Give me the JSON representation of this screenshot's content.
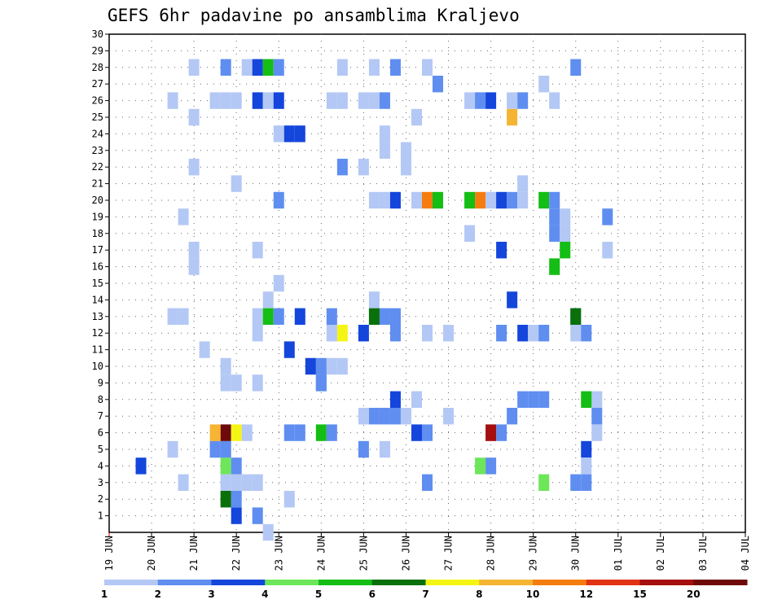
{
  "chart_data": {
    "type": "heatmap",
    "title": "GEFS 6hr padavine po ansamblima Kraljevo",
    "x_tick_labels": [
      "19 JUN",
      "20 JUN",
      "21 JUN",
      "22 JUN",
      "23 JUN",
      "24 JUN",
      "25 JUN",
      "26 JUN",
      "27 JUN",
      "28 JUN",
      "29 JUN",
      "30 JUN",
      "01 JUL",
      "02 JUL",
      "03 JUL",
      "04 JUL"
    ],
    "y_tick_labels": [
      "1",
      "2",
      "3",
      "4",
      "5",
      "6",
      "7",
      "8",
      "9",
      "10",
      "11",
      "12",
      "13",
      "14",
      "15",
      "16",
      "17",
      "18",
      "19",
      "20",
      "21",
      "22",
      "23",
      "24",
      "25",
      "26",
      "27",
      "28",
      "29",
      "30"
    ],
    "x_steps_per_day": 4,
    "legend_labels": [
      "1",
      "2",
      "3",
      "4",
      "5",
      "6",
      "7",
      "8",
      "10",
      "12",
      "15",
      "20"
    ],
    "colors": [
      "#b4c8f5",
      "#5f8ef0",
      "#1446dc",
      "#6ee65a",
      "#14be14",
      "#0a700a",
      "#f5f514",
      "#f5b432",
      "#f57d0f",
      "#e13214",
      "#a50f0f",
      "#6e0a0a"
    ],
    "cells": [
      [
        0,
        15,
        0
      ],
      [
        1,
        14,
        1
      ],
      [
        2,
        17,
        0
      ],
      [
        3,
        30,
        1
      ],
      [
        4,
        3,
        2
      ],
      [
        5,
        10,
        0
      ],
      [
        1,
        12,
        2
      ],
      [
        5,
        11,
        0
      ],
      [
        5,
        6,
        0
      ],
      [
        5,
        26,
        0
      ],
      [
        5,
        24,
        1
      ],
      [
        9,
        12,
        0
      ],
      [
        10,
        22,
        0
      ],
      [
        5,
        45,
        2
      ],
      [
        3,
        7,
        0
      ],
      [
        3,
        11,
        0
      ],
      [
        6,
        37,
        1
      ],
      [
        6,
        36,
        0
      ],
      [
        7,
        38,
        1
      ],
      [
        8,
        46,
        0
      ],
      [
        7,
        46,
        1
      ],
      [
        6,
        46,
        0
      ],
      [
        9,
        14,
        0
      ],
      [
        9,
        20,
        1
      ],
      [
        10,
        21,
        0
      ],
      [
        9,
        20,
        1
      ],
      [
        10,
        20,
        1
      ],
      [
        10,
        19,
        2
      ],
      [
        11,
        17,
        2
      ],
      [
        12,
        44,
        0
      ],
      [
        12,
        30,
        0
      ],
      [
        13,
        44,
        1
      ],
      [
        13,
        6,
        0
      ],
      [
        13,
        21,
        1
      ],
      [
        12,
        24,
        2
      ],
      [
        13,
        18,
        2
      ],
      [
        13,
        25,
        0
      ],
      [
        13,
        26,
        1
      ],
      [
        12,
        22,
        6
      ],
      [
        13,
        7,
        0
      ],
      [
        2,
        12,
        1
      ],
      [
        2,
        11,
        5
      ],
      [
        3,
        12,
        0
      ],
      [
        3,
        13,
        0
      ],
      [
        3,
        14,
        0
      ],
      [
        3,
        41,
        3
      ],
      [
        3,
        44,
        1
      ],
      [
        3,
        45,
        1
      ],
      [
        4,
        11,
        3
      ],
      [
        4,
        12,
        1
      ],
      [
        4,
        35,
        3
      ],
      [
        4,
        36,
        1
      ],
      [
        4,
        45,
        0
      ],
      [
        5,
        11,
        1
      ],
      [
        5,
        10,
        1
      ],
      [
        6,
        11,
        11
      ],
      [
        6,
        10,
        7
      ],
      [
        6,
        12,
        6
      ],
      [
        6,
        13,
        0
      ],
      [
        6,
        17,
        1
      ],
      [
        6,
        18,
        1
      ],
      [
        6,
        20,
        4
      ],
      [
        6,
        21,
        1
      ],
      [
        6,
        29,
        2
      ],
      [
        6,
        30,
        1
      ],
      [
        6,
        36,
        10
      ],
      [
        7,
        25,
        1
      ],
      [
        7,
        26,
        1
      ],
      [
        7,
        27,
        1
      ],
      [
        7,
        28,
        0
      ],
      [
        7,
        24,
        0
      ],
      [
        7,
        32,
        0
      ],
      [
        8,
        27,
        2
      ],
      [
        8,
        29,
        0
      ],
      [
        8,
        39,
        1
      ],
      [
        8,
        40,
        1
      ],
      [
        8,
        41,
        1
      ],
      [
        8,
        45,
        4
      ],
      [
        9,
        11,
        0
      ],
      [
        10,
        11,
        0
      ],
      [
        11,
        9,
        0
      ],
      [
        12,
        14,
        0
      ],
      [
        12,
        21,
        0
      ],
      [
        12,
        27,
        1
      ],
      [
        12,
        32,
        0
      ],
      [
        12,
        37,
        1
      ],
      [
        12,
        39,
        2
      ],
      [
        12,
        40,
        0
      ],
      [
        12,
        41,
        1
      ],
      [
        12,
        45,
        1
      ],
      [
        13,
        14,
        0
      ],
      [
        13,
        15,
        4
      ],
      [
        13,
        16,
        1
      ],
      [
        13,
        25,
        5
      ],
      [
        13,
        44,
        5
      ],
      [
        13,
        27,
        1
      ],
      [
        14,
        15,
        0
      ],
      [
        14,
        25,
        0
      ],
      [
        14,
        38,
        2
      ],
      [
        15,
        16,
        0
      ],
      [
        16,
        8,
        0
      ],
      [
        16,
        42,
        4
      ],
      [
        17,
        8,
        0
      ],
      [
        17,
        14,
        0
      ],
      [
        17,
        37,
        2
      ],
      [
        17,
        43,
        4
      ],
      [
        17,
        47,
        0
      ],
      [
        18,
        34,
        0
      ],
      [
        18,
        42,
        1
      ],
      [
        18,
        43,
        0
      ],
      [
        19,
        7,
        0
      ],
      [
        19,
        42,
        1
      ],
      [
        19,
        43,
        0
      ],
      [
        19,
        47,
        1
      ],
      [
        20,
        25,
        0
      ],
      [
        20,
        26,
        0
      ],
      [
        20,
        27,
        2
      ],
      [
        20,
        29,
        0
      ],
      [
        20,
        30,
        8
      ],
      [
        20,
        31,
        4
      ],
      [
        20,
        34,
        4
      ],
      [
        20,
        35,
        8
      ],
      [
        20,
        36,
        0
      ],
      [
        20,
        37,
        2
      ],
      [
        20,
        38,
        1
      ],
      [
        20,
        39,
        0
      ],
      [
        20,
        41,
        4
      ],
      [
        20,
        42,
        1
      ],
      [
        20,
        16,
        1
      ],
      [
        21,
        12,
        0
      ],
      [
        21,
        39,
        0
      ],
      [
        22,
        8,
        0
      ],
      [
        22,
        22,
        1
      ],
      [
        22,
        24,
        0
      ],
      [
        22,
        28,
        0
      ],
      [
        23,
        26,
        0
      ],
      [
        23,
        28,
        0
      ],
      [
        24,
        16,
        0
      ],
      [
        24,
        17,
        2
      ],
      [
        24,
        18,
        2
      ],
      [
        24,
        26,
        0
      ],
      [
        25,
        8,
        0
      ],
      [
        25,
        29,
        0
      ],
      [
        25,
        38,
        7
      ],
      [
        26,
        6,
        0
      ],
      [
        26,
        10,
        0
      ],
      [
        26,
        11,
        0
      ],
      [
        26,
        12,
        0
      ],
      [
        26,
        14,
        2
      ],
      [
        26,
        15,
        0
      ],
      [
        26,
        16,
        2
      ],
      [
        26,
        21,
        0
      ],
      [
        26,
        22,
        0
      ],
      [
        26,
        24,
        0
      ],
      [
        26,
        25,
        0
      ],
      [
        26,
        26,
        1
      ],
      [
        26,
        34,
        0
      ],
      [
        26,
        35,
        1
      ],
      [
        26,
        36,
        2
      ],
      [
        26,
        38,
        0
      ],
      [
        26,
        39,
        1
      ],
      [
        26,
        42,
        0
      ],
      [
        27,
        31,
        1
      ],
      [
        27,
        41,
        0
      ],
      [
        28,
        8,
        0
      ],
      [
        28,
        11,
        1
      ],
      [
        28,
        13,
        0
      ],
      [
        28,
        14,
        2
      ],
      [
        28,
        15,
        4
      ],
      [
        28,
        16,
        1
      ],
      [
        28,
        22,
        0
      ],
      [
        28,
        25,
        0
      ],
      [
        28,
        27,
        1
      ],
      [
        28,
        30,
        0
      ],
      [
        28,
        44,
        1
      ]
    ]
  }
}
